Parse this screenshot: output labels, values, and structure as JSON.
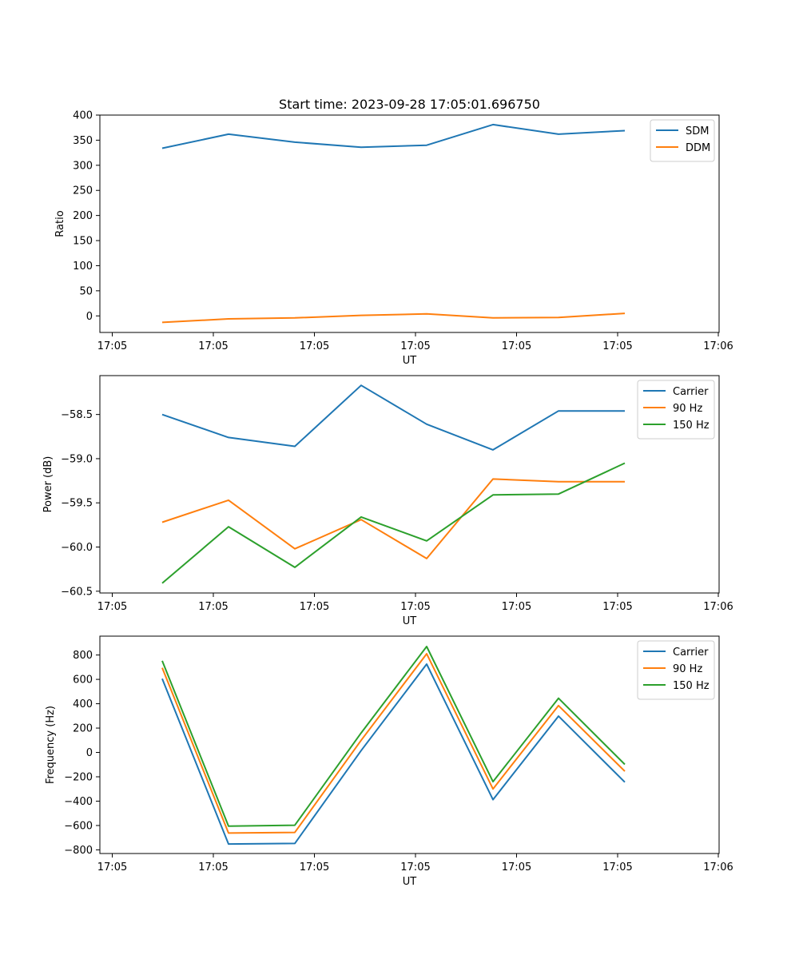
{
  "chart_data": [
    {
      "type": "line",
      "title": "Start time: 2023-09-28 17:05:01.696750",
      "xlabel": "UT",
      "ylabel": "Ratio",
      "x_tick_labels": [
        "17:05",
        "17:05",
        "17:05",
        "17:05",
        "17:05",
        "17:05",
        "17:06"
      ],
      "y_ticks": [
        0,
        50,
        100,
        150,
        200,
        250,
        300,
        350,
        400
      ],
      "ylim": [
        -33,
        400
      ],
      "legend_position": "top-right",
      "series": [
        {
          "name": "SDM",
          "color": "#1f77b4",
          "values": [
            334,
            362,
            346,
            336,
            340,
            381,
            362,
            369
          ]
        },
        {
          "name": "DDM",
          "color": "#ff7f0e",
          "values": [
            -13,
            -6,
            -4,
            1,
            4,
            -4,
            -3,
            5
          ]
        }
      ]
    },
    {
      "type": "line",
      "title": "",
      "xlabel": "UT",
      "ylabel": "Power (dB)",
      "x_tick_labels": [
        "17:05",
        "17:05",
        "17:05",
        "17:05",
        "17:05",
        "17:05",
        "17:06"
      ],
      "y_ticks": [
        -60.5,
        -60.0,
        -59.5,
        -59.0,
        -58.5
      ],
      "y_tick_labels": [
        "−60.5",
        "−60.0",
        "−59.5",
        "−59.0",
        "−58.5"
      ],
      "ylim": [
        -60.52,
        -58.06
      ],
      "legend_position": "top-right",
      "series": [
        {
          "name": "Carrier",
          "color": "#1f77b4",
          "values": [
            -58.5,
            -58.76,
            -58.86,
            -58.17,
            -58.61,
            -58.9,
            -58.46,
            -58.46
          ]
        },
        {
          "name": "90 Hz",
          "color": "#ff7f0e",
          "values": [
            -59.72,
            -59.47,
            -60.02,
            -59.69,
            -60.13,
            -59.23,
            -59.26,
            -59.26
          ]
        },
        {
          "name": "150 Hz",
          "color": "#2ca02c",
          "values": [
            -60.41,
            -59.77,
            -60.23,
            -59.66,
            -59.93,
            -59.41,
            -59.4,
            -59.05
          ]
        }
      ]
    },
    {
      "type": "line",
      "title": "",
      "xlabel": "UT",
      "ylabel": "Frequency (Hz)",
      "x_tick_labels": [
        "17:05",
        "17:05",
        "17:05",
        "17:05",
        "17:05",
        "17:05",
        "17:06"
      ],
      "y_ticks": [
        -800,
        -600,
        -400,
        -200,
        0,
        200,
        400,
        600,
        800
      ],
      "y_tick_labels": [
        "−800",
        "−600",
        "−400",
        "−200",
        "0",
        "200",
        "400",
        "600",
        "800"
      ],
      "ylim": [
        -830,
        955
      ],
      "legend_position": "top-right",
      "series": [
        {
          "name": "Carrier",
          "color": "#1f77b4",
          "values": [
            605,
            -752,
            -747,
            15,
            725,
            -388,
            298,
            -244
          ]
        },
        {
          "name": "90 Hz",
          "color": "#ff7f0e",
          "values": [
            695,
            -662,
            -657,
            100,
            810,
            -300,
            385,
            -155
          ]
        },
        {
          "name": "150 Hz",
          "color": "#2ca02c",
          "values": [
            752,
            -605,
            -598,
            160,
            870,
            -240,
            445,
            -98
          ]
        }
      ]
    }
  ]
}
